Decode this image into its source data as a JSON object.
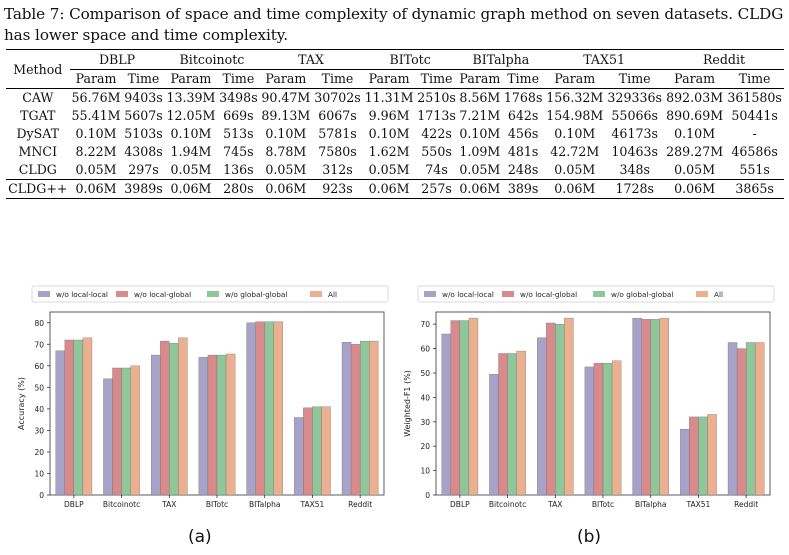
{
  "caption": "Table 7: Comparison of space and time complexity of dynamic graph method on seven datasets. CLDG has lower space and time complexity.",
  "table": {
    "method_header": "Method",
    "datasets": [
      "DBLP",
      "Bitcoinotc",
      "TAX",
      "BITotc",
      "BITalpha",
      "TAX51",
      "Reddit"
    ],
    "subheaders": [
      "Param",
      "Time"
    ],
    "rows": [
      {
        "method": "CAW",
        "bold": false,
        "cells": [
          "56.76M",
          "9403s",
          "13.39M",
          "3498s",
          "90.47M",
          "30702s",
          "11.31M",
          "2510s",
          "8.56M",
          "1768s",
          "156.32M",
          "329336s",
          "892.03M",
          "361580s"
        ]
      },
      {
        "method": "TGAT",
        "bold": false,
        "cells": [
          "55.41M",
          "5607s",
          "12.05M",
          "669s",
          "89.13M",
          "6067s",
          "9.96M",
          "1713s",
          "7.21M",
          "642s",
          "154.98M",
          "55066s",
          "890.69M",
          "50441s"
        ]
      },
      {
        "method": "DySAT",
        "bold": false,
        "cells": [
          "0.10M",
          "5103s",
          "0.10M",
          "513s",
          "0.10M",
          "5781s",
          "0.10M",
          "422s",
          "0.10M",
          "456s",
          "0.10M",
          "46173s",
          "0.10M",
          "-"
        ]
      },
      {
        "method": "MNCI",
        "bold": false,
        "cells": [
          "8.22M",
          "4308s",
          "1.94M",
          "745s",
          "8.78M",
          "7580s",
          "1.62M",
          "550s",
          "1.09M",
          "481s",
          "42.72M",
          "10463s",
          "289.27M",
          "46586s"
        ]
      },
      {
        "method": "CLDG",
        "bold": true,
        "cells": [
          "0.05M",
          "297s",
          "0.05M",
          "136s",
          "0.05M",
          "312s",
          "0.05M",
          "74s",
          "0.05M",
          "248s",
          "0.05M",
          "348s",
          "0.05M",
          "551s"
        ]
      },
      {
        "method": "CLDG++",
        "bold": true,
        "cells": [
          "0.06M",
          "3989s",
          "0.06M",
          "280s",
          "0.06M",
          "923s",
          "0.06M",
          "257s",
          "0.06M",
          "389s",
          "0.06M",
          "1728s",
          "0.06M",
          "3865s"
        ]
      }
    ]
  },
  "chart_data": [
    {
      "type": "bar",
      "panel_label": "(a)",
      "categories": [
        "DBLP",
        "Bitcoinotc",
        "TAX",
        "BITotc",
        "BITalpha",
        "TAX51",
        "Reddit"
      ],
      "ylabel": "Accuracy (%)",
      "ylim": [
        0,
        85
      ],
      "yticks": [
        0,
        10,
        20,
        30,
        40,
        50,
        60,
        70,
        80
      ],
      "legend_position": "top",
      "series": [
        {
          "name": "w/o local-local",
          "color": "#a8a2c8",
          "values": [
            67,
            54,
            65,
            64,
            80,
            36,
            71
          ]
        },
        {
          "name": "w/o local-global",
          "color": "#d98a8c",
          "values": [
            72,
            59,
            71.5,
            65,
            80.5,
            40.5,
            70
          ]
        },
        {
          "name": "w/o global-global",
          "color": "#8fc79a",
          "values": [
            72,
            59,
            70.5,
            65,
            80.5,
            41,
            71.5
          ]
        },
        {
          "name": "All",
          "color": "#eab08f",
          "values": [
            73,
            60,
            73,
            65.5,
            80.5,
            41,
            71.5
          ]
        }
      ]
    },
    {
      "type": "bar",
      "panel_label": "(b)",
      "categories": [
        "DBLP",
        "Bitcoinotc",
        "TAX",
        "BITotc",
        "BITalpha",
        "TAX51",
        "Reddit"
      ],
      "ylabel": "Weighted-F1 (%)",
      "ylim": [
        0,
        75
      ],
      "yticks": [
        0,
        10,
        20,
        30,
        40,
        50,
        60,
        70
      ],
      "legend_position": "top",
      "series": [
        {
          "name": "w/o local-local",
          "color": "#a8a2c8",
          "values": [
            66,
            49.5,
            64.5,
            52.5,
            72.5,
            27,
            62.5
          ]
        },
        {
          "name": "w/o local-global",
          "color": "#d98a8c",
          "values": [
            71.5,
            58,
            70.5,
            54,
            72,
            32,
            60
          ]
        },
        {
          "name": "w/o global-global",
          "color": "#8fc79a",
          "values": [
            71.5,
            58,
            70,
            54,
            72,
            32,
            62.5
          ]
        },
        {
          "name": "All",
          "color": "#eab08f",
          "values": [
            72.5,
            59,
            72.5,
            55,
            72.5,
            33,
            62.5
          ]
        }
      ]
    }
  ]
}
